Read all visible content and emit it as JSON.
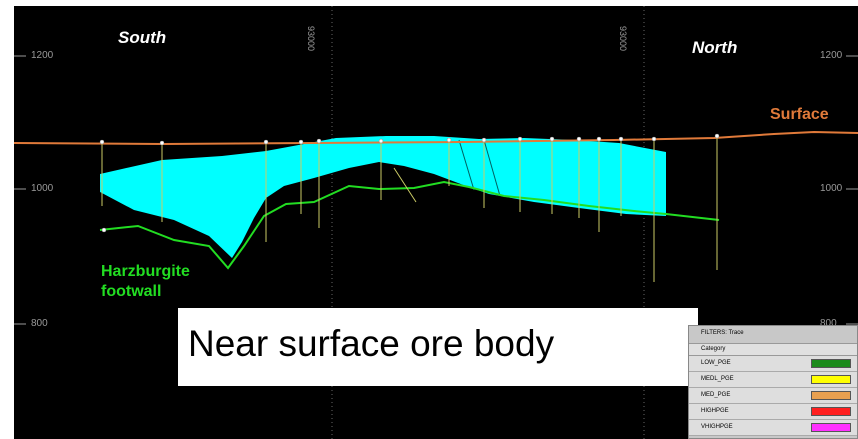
{
  "section": {
    "directions": {
      "left": "South",
      "right": "North"
    },
    "elevation_labels": [
      "1200",
      "1000",
      "800"
    ],
    "easting_labels": [
      "93000",
      "93000"
    ],
    "surface_label": "Surface",
    "footwall_label_line1": "Harzburgite",
    "footwall_label_line2": "footwall",
    "colors": {
      "surface": "#e07a3a",
      "ore_body": "#00ffff",
      "footwall": "#22dd22",
      "background": "#000000"
    }
  },
  "caption": {
    "text": "Near surface ore body"
  },
  "filters": {
    "title": "FILTERS: Trace",
    "category": "Category",
    "items": [
      {
        "label": "LOW_PGE",
        "color": "#1a8a1a"
      },
      {
        "label": "MEDL_PGE",
        "color": "#ffff00"
      },
      {
        "label": "MED_PGE",
        "color": "#e8a050"
      },
      {
        "label": "HIGHPGE",
        "color": "#ff2020"
      },
      {
        "label": "VHIGHPGE",
        "color": "#ff30ff"
      }
    ]
  }
}
